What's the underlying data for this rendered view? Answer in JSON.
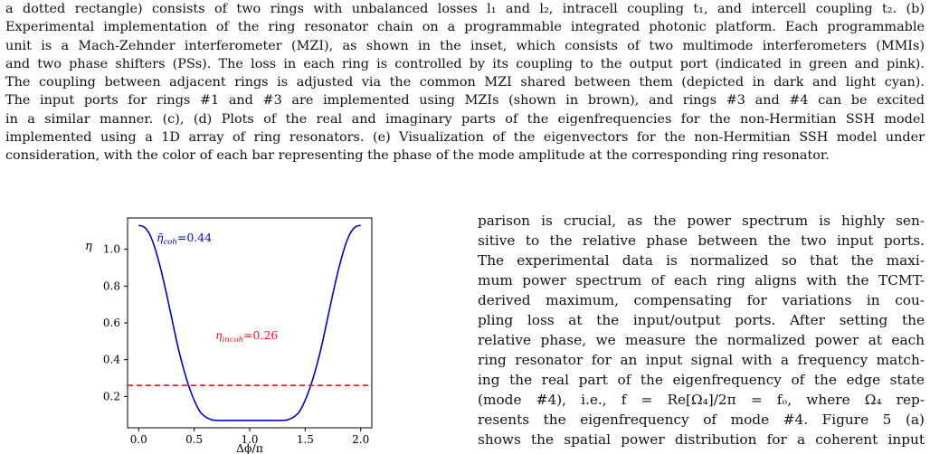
{
  "caption": {
    "lines": [
      "a dotted rectangle) consists of two rings with unbalanced losses l₁ and l₂, intracell coupling t₁, and intercell coupling t₂. (b)",
      "Experimental implementation of the ring resonator chain on a programmable integrated photonic platform. Each programmable",
      "unit is a Mach-Zehnder interferometer (MZI), as shown in the inset, which consists of two multimode interferometers (MMIs)",
      "and two phase shifters (PSs). The loss in each ring is controlled by its coupling to the output port (indicated in green and pink).",
      "The coupling between adjacent rings is adjusted via the common MZI shared between them (depicted in dark and light cyan).",
      "The input ports for rings #1 and #3 are implemented using MZIs (shown in brown), and rings #3 and #4 can be excited",
      "in a similar manner. (c), (d) Plots of the real and imaginary parts of the eigenfrequencies for the non-Hermitian SSH model",
      "implemented using a 1D array of ring resonators. (e) Visualization of the eigenvectors for the non-Hermitian SSH model under",
      "consideration, with the color of each bar representing the phase of the mode amplitude at the corresponding ring resonator."
    ]
  },
  "chart_data": {
    "type": "line",
    "xlabel": "Δϕ/π",
    "ylabel": "η",
    "xlim": [
      -0.1,
      2.1
    ],
    "ylim": [
      0.03,
      1.17
    ],
    "xticks": [
      "0.0",
      "0.5",
      "1.0",
      "1.5",
      "2.0"
    ],
    "yticks": [
      "0.2",
      "0.4",
      "0.6",
      "0.8",
      "1.0"
    ],
    "series": [
      {
        "name": "coherent",
        "color": "#0000cc",
        "style": "solid",
        "x": [
          0.0,
          0.05,
          0.1,
          0.15,
          0.2,
          0.25,
          0.3,
          0.35,
          0.4,
          0.45,
          0.5,
          0.55,
          0.6,
          0.65,
          0.7,
          0.8,
          0.9,
          1.0,
          1.1,
          1.2,
          1.3,
          1.35,
          1.4,
          1.45,
          1.5,
          1.55,
          1.6,
          1.65,
          1.7,
          1.75,
          1.8,
          1.85,
          1.9,
          1.95,
          2.0
        ],
        "y": [
          1.13,
          1.12,
          1.08,
          1.0,
          0.89,
          0.76,
          0.62,
          0.48,
          0.36,
          0.26,
          0.18,
          0.12,
          0.09,
          0.075,
          0.07,
          0.07,
          0.07,
          0.07,
          0.07,
          0.07,
          0.07,
          0.075,
          0.09,
          0.12,
          0.18,
          0.26,
          0.36,
          0.48,
          0.62,
          0.76,
          0.89,
          1.0,
          1.08,
          1.12,
          1.13
        ]
      },
      {
        "name": "incoherent",
        "color": "#e8161a",
        "style": "dashed",
        "x": [
          -0.1,
          2.1
        ],
        "y": [
          0.26,
          0.26
        ]
      }
    ],
    "annotations": {
      "coh": {
        "symbol": "η̄",
        "sub": "coh",
        "value": "=0.44"
      },
      "incoh": {
        "symbol": "η",
        "sub": "incoh",
        "value": "=0.26"
      }
    }
  },
  "body_text": {
    "lines": [
      "parison is crucial, as the power spectrum is highly sen-",
      "sitive to the relative phase between the two input ports.",
      "The experimental data is normalized so that the maxi-",
      "mum power spectrum of each ring aligns with the TCMT-",
      "derived maximum, compensating for variations in cou-",
      "pling loss at the input/output ports. After setting the",
      "relative phase, we measure the normalized power at each",
      "ring resonator for an input signal with a frequency match-",
      "ing the real part of the eigenfrequency of the edge state",
      "(mode #4), i.e., f = Re[Ω₄]/2π = fₒ, where Ω₄ rep-",
      "resents the eigenfrequency of mode #4. Figure 5 (a)",
      "shows the spatial power distribution for a coherent input"
    ]
  }
}
